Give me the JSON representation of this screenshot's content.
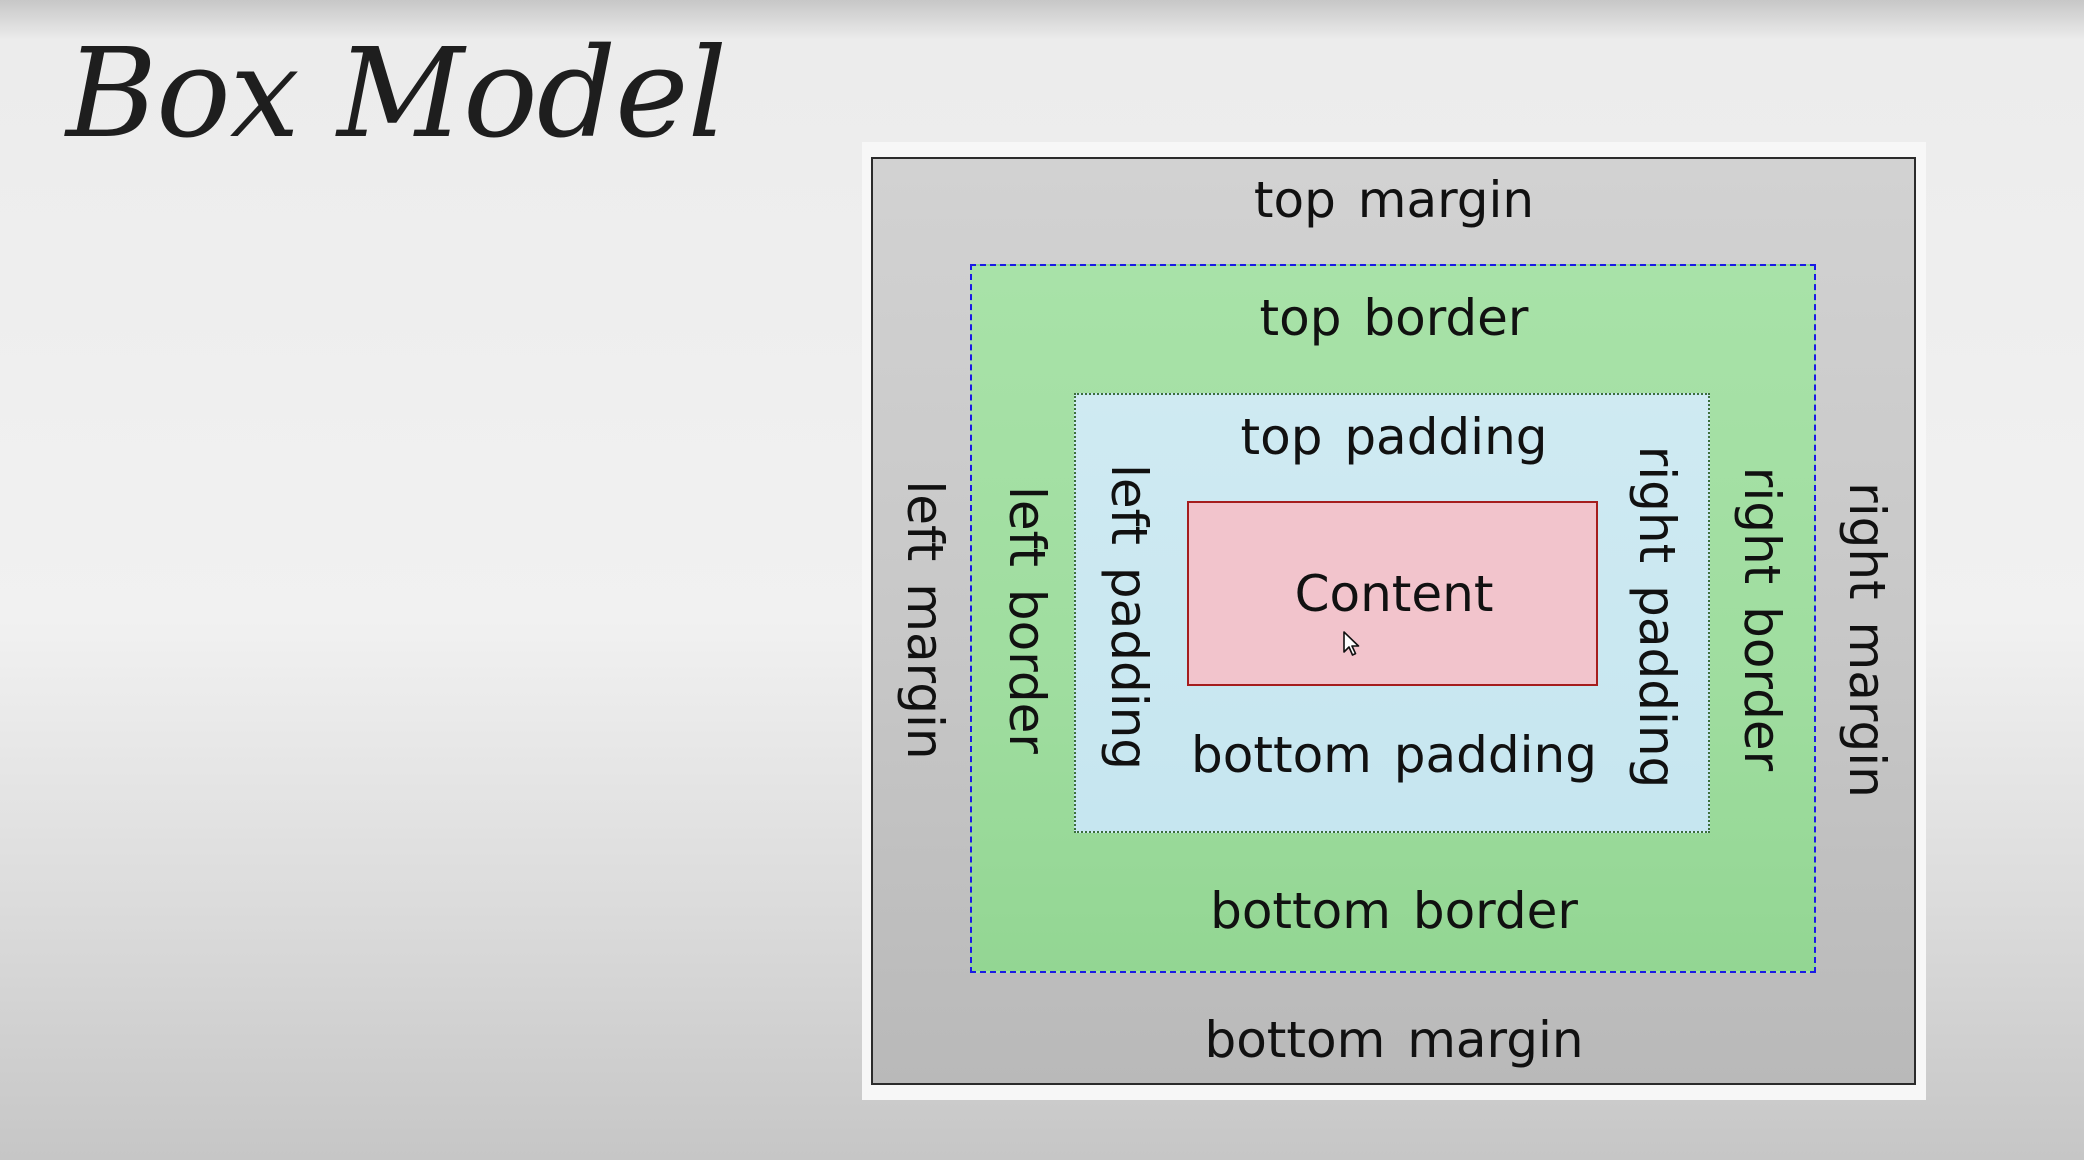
{
  "slide": {
    "title": "Box Model"
  },
  "diagram": {
    "margin": {
      "top": "top margin",
      "bottom": "bottom margin",
      "left": "left margin",
      "right": "right margin"
    },
    "border": {
      "top": "top border",
      "bottom": "bottom border",
      "left": "left border",
      "right": "right border"
    },
    "padding": {
      "top": "top padding",
      "bottom": "bottom padding",
      "left": "left padding",
      "right": "right padding"
    },
    "content": "Content"
  },
  "colors": {
    "margin_fill": "#c8c8c8",
    "border_fill": "#a0de9f",
    "border_outline": "#1a1ae6",
    "padding_fill": "#c9e8f1",
    "content_fill": "#f2c4cc",
    "content_outline": "#a51d1d"
  },
  "icons": {
    "cursor": "mouse-pointer-icon"
  }
}
